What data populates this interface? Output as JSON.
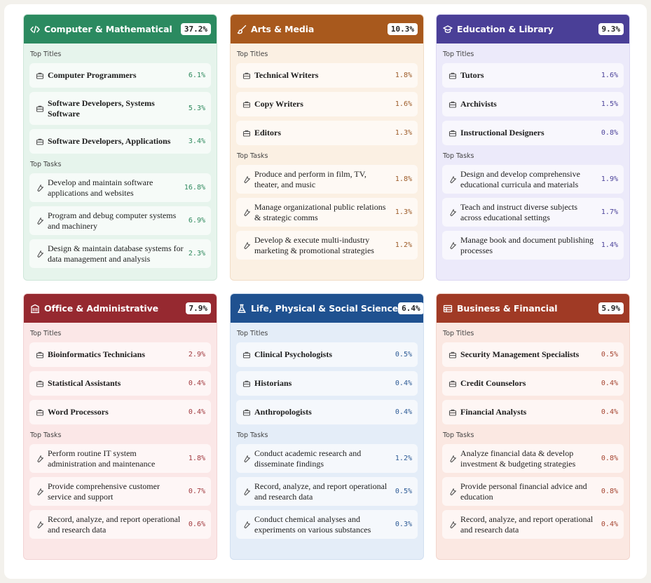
{
  "labels": {
    "top_titles": "Top Titles",
    "top_tasks": "Top Tasks"
  },
  "cards": [
    {
      "title": "Computer & Mathematical",
      "percent": "37.2%",
      "icon": "code-icon",
      "colors": {
        "header": "#2b8a60",
        "body": "#e6f4ec",
        "border": "#cfe6d9",
        "pct": "#2f8a5e"
      },
      "titles": [
        {
          "label": "Computer Programmers",
          "percent": "6.1%"
        },
        {
          "label": "Software Developers, Systems Software",
          "percent": "5.3%"
        },
        {
          "label": "Software Developers, Applications",
          "percent": "3.4%"
        }
      ],
      "tasks": [
        {
          "label": "Develop and maintain software applications and websites",
          "percent": "16.8%"
        },
        {
          "label": "Program and debug computer systems and machinery",
          "percent": "6.9%"
        },
        {
          "label": "Design & maintain database systems for data management and analysis",
          "percent": "2.3%"
        }
      ]
    },
    {
      "title": "Arts & Media",
      "percent": "10.3%",
      "icon": "brush-icon",
      "colors": {
        "header": "#a8591d",
        "body": "#fbf0e3",
        "border": "#f1ddc6",
        "pct": "#9c5a26"
      },
      "titles": [
        {
          "label": "Technical Writers",
          "percent": "1.8%"
        },
        {
          "label": "Copy Writers",
          "percent": "1.6%"
        },
        {
          "label": "Editors",
          "percent": "1.3%"
        }
      ],
      "tasks": [
        {
          "label": "Produce and perform in film, TV, theater, and music",
          "percent": "1.8%"
        },
        {
          "label": "Manage organizational public relations & strategic comms",
          "percent": "1.3%"
        },
        {
          "label": "Develop & execute multi-industry marketing & promotional strategies",
          "percent": "1.2%"
        }
      ]
    },
    {
      "title": "Education & Library",
      "percent": "9.3%",
      "icon": "graduation-cap-icon",
      "colors": {
        "header": "#4a3f97",
        "body": "#eceafa",
        "border": "#dcd8f2",
        "pct": "#4b429a"
      },
      "titles": [
        {
          "label": "Tutors",
          "percent": "1.6%"
        },
        {
          "label": "Archivists",
          "percent": "1.5%"
        },
        {
          "label": "Instructional Designers",
          "percent": "0.8%"
        }
      ],
      "tasks": [
        {
          "label": "Design and develop comprehensive educational curricula and materials",
          "percent": "1.9%"
        },
        {
          "label": "Teach and instruct diverse subjects across educational settings",
          "percent": "1.7%"
        },
        {
          "label": "Manage book and document publishing processes",
          "percent": "1.4%"
        }
      ]
    },
    {
      "title": "Office & Administrative",
      "percent": "7.9%",
      "icon": "building-icon",
      "colors": {
        "header": "#962930",
        "body": "#fbe7e7",
        "border": "#f2d3d4",
        "pct": "#a13a3f"
      },
      "titles": [
        {
          "label": "Bioinformatics Technicians",
          "percent": "2.9%"
        },
        {
          "label": "Statistical Assistants",
          "percent": "0.4%"
        },
        {
          "label": "Word Processors",
          "percent": "0.4%"
        }
      ],
      "tasks": [
        {
          "label": "Perform routine IT system administration and maintenance",
          "percent": "1.8%"
        },
        {
          "label": "Provide comprehensive customer service and support",
          "percent": "0.7%"
        },
        {
          "label": "Record, analyze, and report operational and research data",
          "percent": "0.6%"
        }
      ]
    },
    {
      "title": "Life, Physical & Social Science",
      "percent": "6.4%",
      "icon": "flask-icon",
      "colors": {
        "header": "#1f5190",
        "body": "#e4edf8",
        "border": "#d1dff0",
        "pct": "#2c5a95"
      },
      "titles": [
        {
          "label": "Clinical Psychologists",
          "percent": "0.5%"
        },
        {
          "label": "Historians",
          "percent": "0.4%"
        },
        {
          "label": "Anthropologists",
          "percent": "0.4%"
        }
      ],
      "tasks": [
        {
          "label": "Conduct academic research and disseminate findings",
          "percent": "1.2%"
        },
        {
          "label": "Record, analyze, and report operational and research data",
          "percent": "0.5%"
        },
        {
          "label": "Conduct chemical analyses and experiments on various substances",
          "percent": "0.3%"
        }
      ]
    },
    {
      "title": "Business & Financial",
      "percent": "5.9%",
      "icon": "ledger-icon",
      "colors": {
        "header": "#a03a25",
        "body": "#fbe8e2",
        "border": "#f2d5cc",
        "pct": "#a4432f"
      },
      "titles": [
        {
          "label": "Security Management Specialists",
          "percent": "0.5%"
        },
        {
          "label": "Credit Counselors",
          "percent": "0.4%"
        },
        {
          "label": "Financial Analysts",
          "percent": "0.4%"
        }
      ],
      "tasks": [
        {
          "label": "Analyze financial data & develop investment & budgeting strategies",
          "percent": "0.8%"
        },
        {
          "label": "Provide personal financial advice and education",
          "percent": "0.8%"
        },
        {
          "label": "Record, analyze, and report operational and research data",
          "percent": "0.4%"
        }
      ]
    }
  ]
}
